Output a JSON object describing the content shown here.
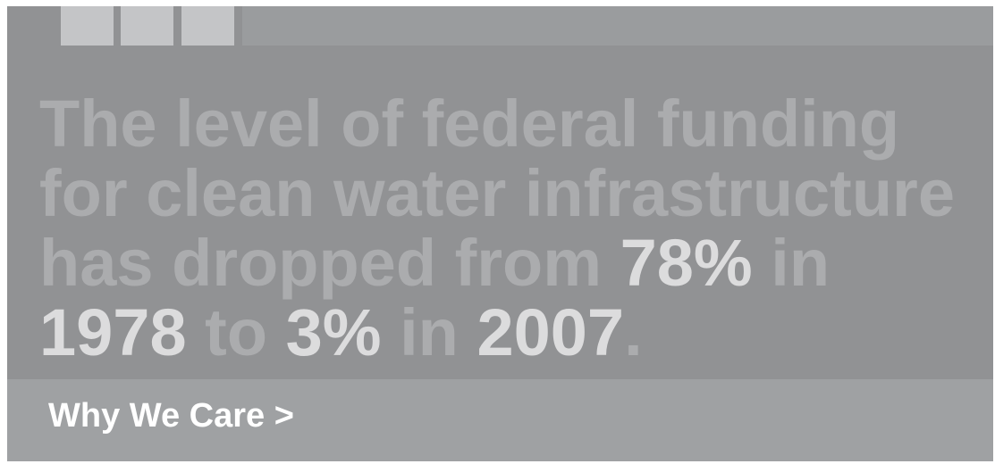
{
  "headline": {
    "line1": "The level of federal funding",
    "line2": "for clean water infrastructure",
    "line3_pre": "has dropped from ",
    "line3_pct1": "78%",
    "line3_post": " in",
    "line4_year1": "1978",
    "line4_mid1": " to ",
    "line4_pct2": "3%",
    "line4_mid2": " in ",
    "line4_year2": "2007",
    "line4_end": "."
  },
  "cta": {
    "label": "Why We Care >"
  },
  "colors": {
    "background": "#919294",
    "top_strip": "#9a9c9e",
    "blocks": "#c4c5c7",
    "headline_text": "#abacae",
    "highlight_text": "#dcdcdd",
    "footer_bar": "#9fa1a3",
    "cta_text": "#ffffff"
  }
}
